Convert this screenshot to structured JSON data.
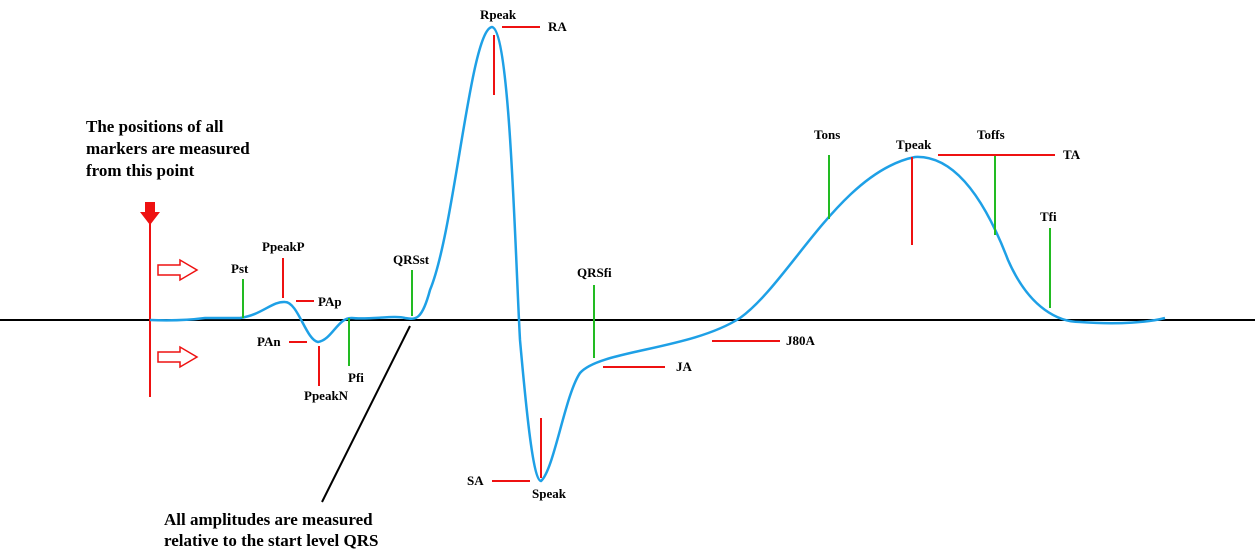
{
  "notes": {
    "origin": [
      "The positions of all",
      "markers are measured",
      "from this point"
    ],
    "amplitude": [
      "All amplitudes are measured",
      "relative to the start level QRS"
    ]
  },
  "markers": {
    "pst": "Pst",
    "ppeakp": "PpeakP",
    "pap": "PAp",
    "pan": "PAn",
    "ppeakn": "PpeakN",
    "pfi": "Pfi",
    "qrsst": "QRSst",
    "rpeak": "Rpeak",
    "ra": "RA",
    "qrsfi": "QRSfi",
    "sa": "SA",
    "speak": "Speak",
    "ja": "JA",
    "j80a": "J80A",
    "tons": "Tons",
    "tpeak": "Tpeak",
    "toffs": "Toffs",
    "ta": "TA",
    "tfi": "Tfi"
  },
  "colors": {
    "waveform": "#1ea0e6",
    "position_marker": "#22bb22",
    "amplitude_marker": "#ee1111",
    "baseline": "#000000",
    "origin_arrow": "#ee1111"
  }
}
